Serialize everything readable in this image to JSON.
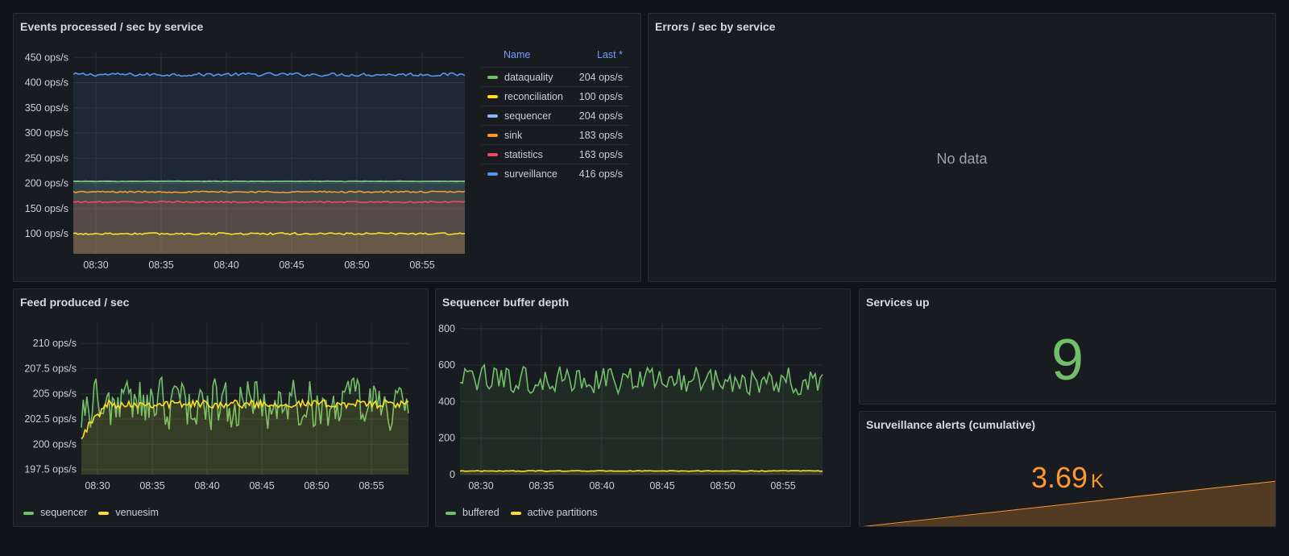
{
  "panels": {
    "events": {
      "title": "Events processed / sec by service",
      "legend_headers": {
        "name": "Name",
        "last": "Last *"
      },
      "legend": [
        {
          "name": "dataquality",
          "last": "204 ops/s",
          "color": "#73bf69"
        },
        {
          "name": "reconciliation",
          "last": "100 ops/s",
          "color": "#fade2a"
        },
        {
          "name": "sequencer",
          "last": "204 ops/s",
          "color": "#8ab8ff"
        },
        {
          "name": "sink",
          "last": "183 ops/s",
          "color": "#ff9830"
        },
        {
          "name": "statistics",
          "last": "163 ops/s",
          "color": "#f2495c"
        },
        {
          "name": "surveillance",
          "last": "416 ops/s",
          "color": "#5794f2"
        }
      ]
    },
    "errors": {
      "title": "Errors / sec by service",
      "no_data": "No data"
    },
    "feed": {
      "title": "Feed produced / sec",
      "legend": [
        {
          "name": "sequencer",
          "color": "#73bf69"
        },
        {
          "name": "venuesim",
          "color": "#fade2a"
        }
      ]
    },
    "buffer": {
      "title": "Sequencer buffer depth",
      "legend": [
        {
          "name": "buffered",
          "color": "#73bf69"
        },
        {
          "name": "active partitions",
          "color": "#fade2a"
        }
      ]
    },
    "services_up": {
      "title": "Services up",
      "value": "9",
      "color": "#73bf69"
    },
    "alerts": {
      "title": "Surveillance alerts (cumulative)",
      "value": "3.69",
      "unit": "K",
      "color": "#ff9830"
    }
  },
  "chart_data": [
    {
      "type": "line",
      "title": "Events processed / sec by service",
      "x_ticks": [
        "08:30",
        "08:35",
        "08:40",
        "08:45",
        "08:50",
        "08:55"
      ],
      "y_ticks": [
        "100 ops/s",
        "150 ops/s",
        "200 ops/s",
        "250 ops/s",
        "300 ops/s",
        "350 ops/s",
        "400 ops/s",
        "450 ops/s"
      ],
      "y_tick_values": [
        100,
        150,
        200,
        250,
        300,
        350,
        400,
        450
      ],
      "ylim": [
        60,
        460
      ],
      "series": [
        {
          "name": "surveillance",
          "color": "#5794f2",
          "base": 416,
          "noise": 4
        },
        {
          "name": "sequencer",
          "color": "#8ab8ff",
          "base": 204,
          "noise": 0.6
        },
        {
          "name": "dataquality",
          "color": "#73bf69",
          "base": 204,
          "noise": 0.5
        },
        {
          "name": "sink",
          "color": "#ff9830",
          "base": 183,
          "noise": 1.5
        },
        {
          "name": "statistics",
          "color": "#f2495c",
          "base": 163,
          "noise": 1.5
        },
        {
          "name": "reconciliation",
          "color": "#fade2a",
          "base": 100,
          "noise": 2
        }
      ]
    },
    {
      "type": "line",
      "title": "Feed produced / sec",
      "x_ticks": [
        "08:30",
        "08:35",
        "08:40",
        "08:45",
        "08:50",
        "08:55"
      ],
      "y_ticks": [
        "197.5 ops/s",
        "200 ops/s",
        "202.5 ops/s",
        "205 ops/s",
        "207.5 ops/s",
        "210 ops/s"
      ],
      "y_tick_values": [
        197.5,
        200,
        202.5,
        205,
        207.5,
        210
      ],
      "ylim": [
        197,
        212
      ],
      "series": [
        {
          "name": "sequencer",
          "color": "#73bf69",
          "base": 204,
          "noise": 3
        },
        {
          "name": "venuesim",
          "color": "#fade2a",
          "base": 204,
          "noise": 0.4
        }
      ]
    },
    {
      "type": "line",
      "title": "Sequencer buffer depth",
      "x_ticks": [
        "08:30",
        "08:35",
        "08:40",
        "08:45",
        "08:50",
        "08:55"
      ],
      "y_ticks": [
        "0",
        "200",
        "400",
        "600",
        "800"
      ],
      "y_tick_values": [
        0,
        200,
        400,
        600,
        800
      ],
      "ylim": [
        0,
        830
      ],
      "series": [
        {
          "name": "buffered",
          "color": "#73bf69",
          "base": 520,
          "noise": 90
        },
        {
          "name": "active partitions",
          "color": "#fade2a",
          "base": 20,
          "noise": 2
        }
      ]
    }
  ]
}
